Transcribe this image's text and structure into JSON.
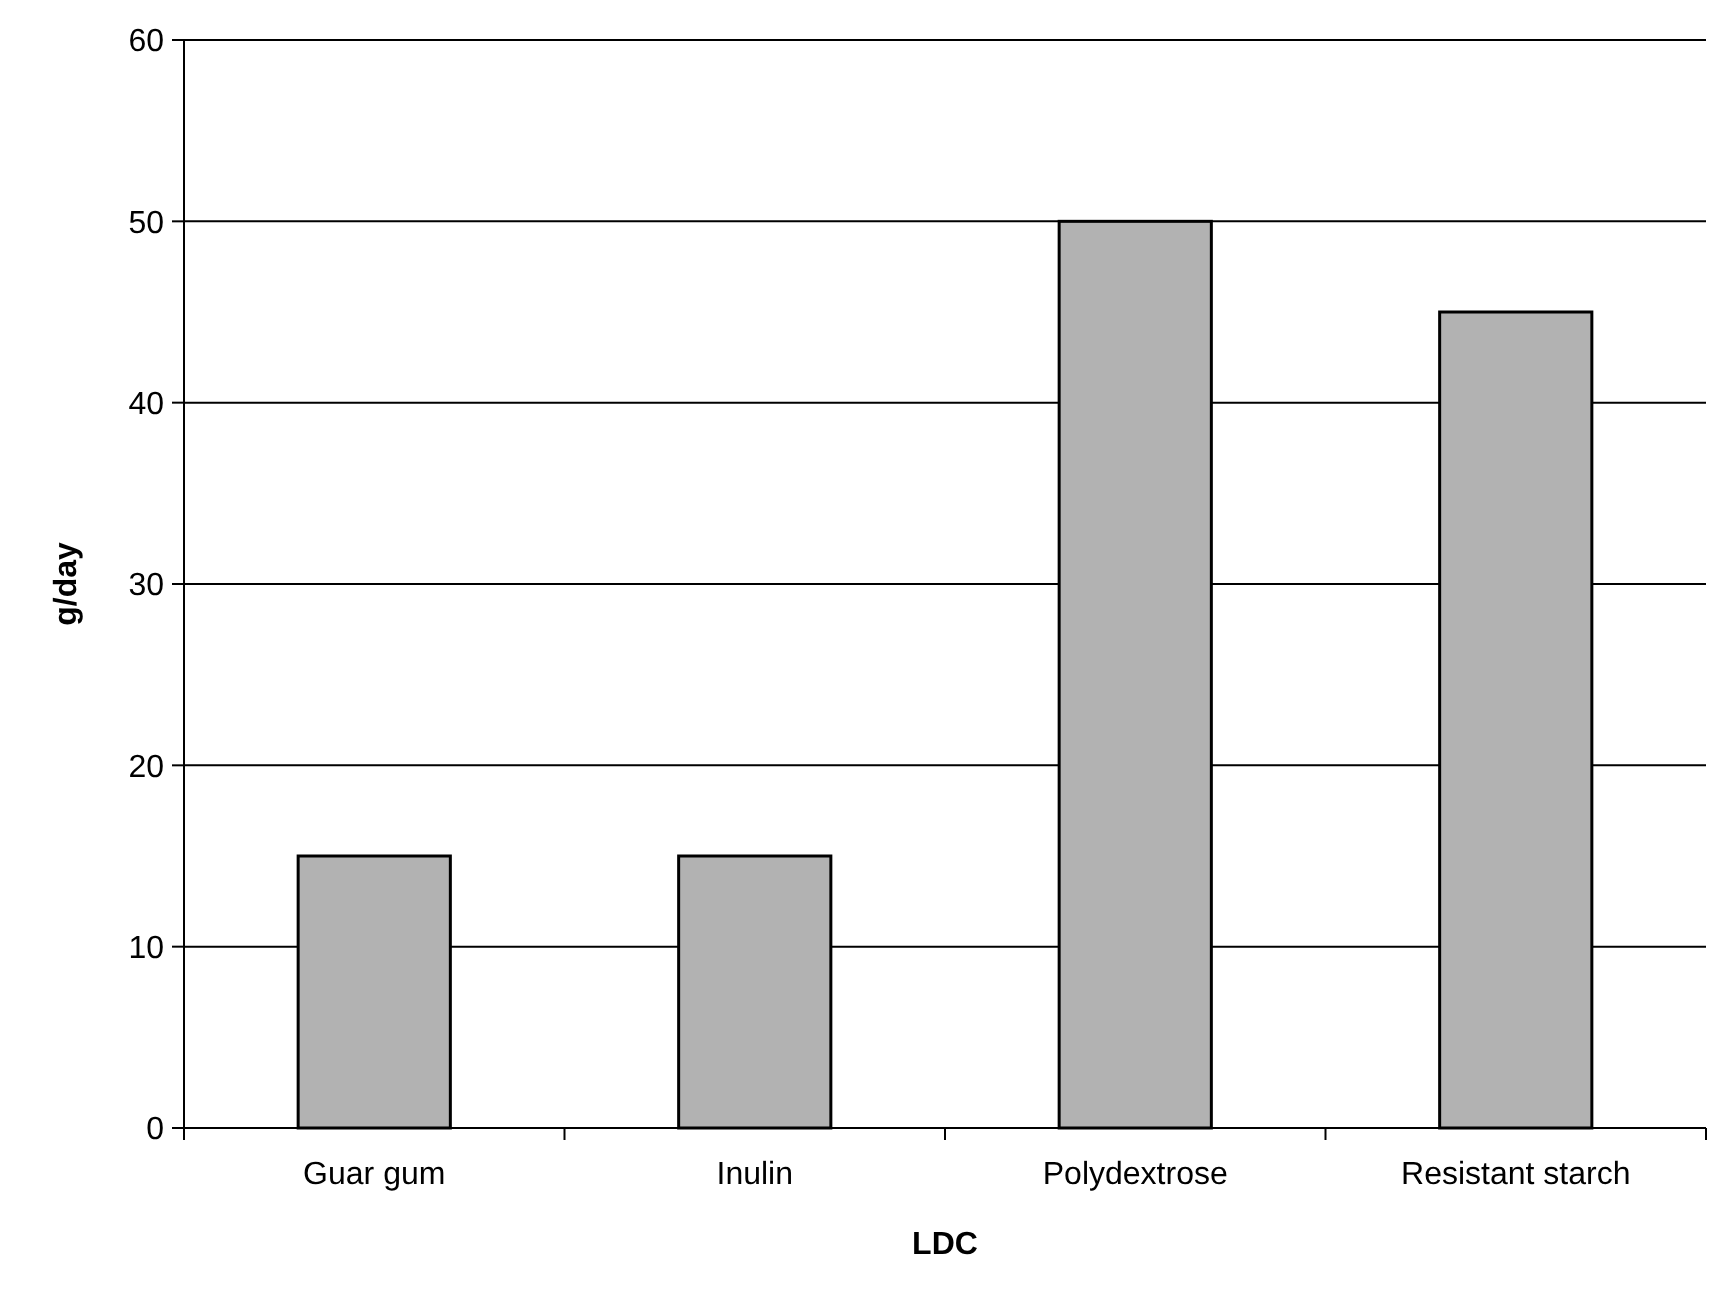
{
  "chart_data": {
    "type": "bar",
    "xlabel": "LDC",
    "ylabel": "g/day",
    "categories": [
      "Guar gum",
      "Inulin",
      "Polydextrose",
      "Resistant starch"
    ],
    "values": [
      15,
      15,
      50,
      45
    ],
    "color": "#b2b2b2",
    "ylim": [
      0,
      60
    ],
    "yticks": [
      0,
      10,
      20,
      30,
      40,
      50,
      60
    ],
    "grid": "y"
  }
}
